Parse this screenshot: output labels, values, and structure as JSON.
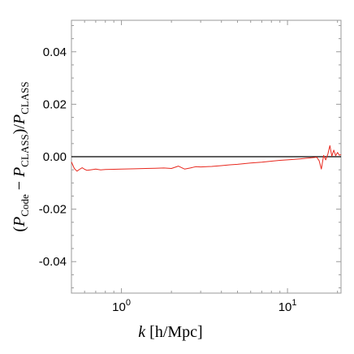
{
  "chart_data": {
    "type": "line",
    "xscale": "log",
    "xlim": [
      0.5,
      21
    ],
    "ylim": [
      -0.052,
      0.052
    ],
    "xlabel": {
      "var": "k",
      "unit": " [h/Mpc]"
    },
    "ylabel": {
      "open": "(",
      "p1": "P",
      "s1": "Code",
      "minus": " − ",
      "p2": "P",
      "s2": "CLASS",
      "close": ")/",
      "p3": "P",
      "s3": "CLASS"
    },
    "xticks": [
      {
        "value": 1,
        "base": "10",
        "exp": "0"
      },
      {
        "value": 10,
        "base": "10",
        "exp": "1"
      }
    ],
    "yticks": [
      {
        "value": 0.04,
        "label": "0.04"
      },
      {
        "value": 0.02,
        "label": "0.02"
      },
      {
        "value": 0.0,
        "label": "0.00"
      },
      {
        "value": -0.02,
        "label": "-0.02"
      },
      {
        "value": -0.04,
        "label": "-0.04"
      }
    ],
    "grid": false,
    "reference_line": {
      "y": 0.0,
      "color": "#000000"
    },
    "series": [
      {
        "color": "#e8281e",
        "x": [
          0.5,
          0.52,
          0.54,
          0.56,
          0.58,
          0.6,
          0.62,
          0.65,
          0.7,
          0.75,
          0.8,
          0.9,
          1.0,
          1.2,
          1.4,
          1.6,
          1.8,
          2.0,
          2.2,
          2.4,
          2.6,
          2.8,
          3.0,
          3.5,
          4.0,
          4.5,
          5.0,
          6.0,
          7.0,
          8.0,
          9.0,
          10.0,
          11.0,
          12.0,
          13.0,
          14.0,
          15.0,
          15.5,
          16.0,
          16.5,
          17.0,
          17.5,
          18.0,
          18.5,
          19.0,
          19.5,
          20.0,
          20.5,
          21.0
        ],
        "y": [
          -0.002,
          -0.0045,
          -0.0055,
          -0.0048,
          -0.0042,
          -0.0048,
          -0.0052,
          -0.005,
          -0.0047,
          -0.005,
          -0.0049,
          -0.0048,
          -0.0047,
          -0.0046,
          -0.0045,
          -0.0044,
          -0.0043,
          -0.0045,
          -0.0036,
          -0.0047,
          -0.0043,
          -0.0038,
          -0.0039,
          -0.0037,
          -0.0034,
          -0.0031,
          -0.0029,
          -0.0024,
          -0.0021,
          -0.0017,
          -0.0014,
          -0.0012,
          -0.001,
          -0.0008,
          -0.0006,
          -0.0004,
          -0.0002,
          -0.0015,
          -0.0047,
          0.0005,
          -0.0012,
          0.001,
          0.0042,
          0.0002,
          0.0025,
          0.0004,
          0.0016,
          0.0006,
          0.0008
        ]
      }
    ]
  }
}
